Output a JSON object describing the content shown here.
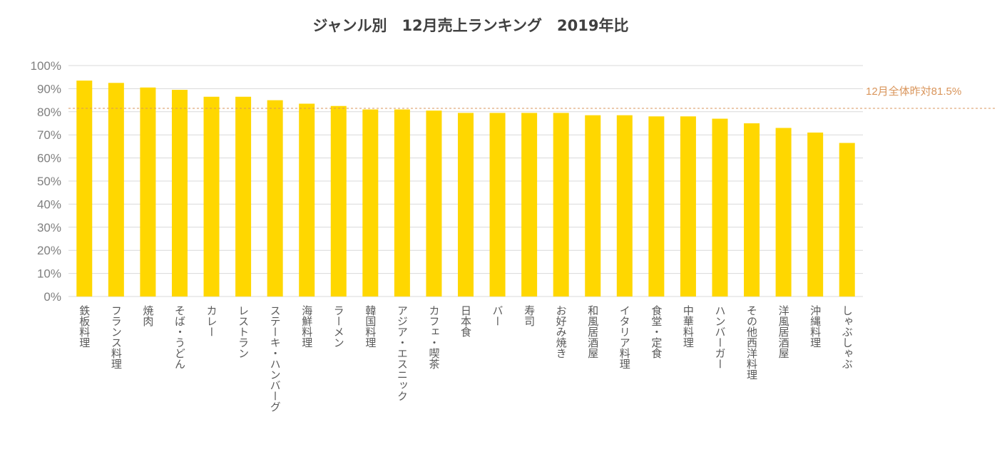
{
  "chart_data": {
    "type": "bar",
    "title": "ジャンル別　12月売上ランキング　2019年比",
    "xlabel": "",
    "ylabel": "",
    "ylim": [
      0,
      100
    ],
    "yticks": [
      "0%",
      "10%",
      "20%",
      "30%",
      "40%",
      "50%",
      "60%",
      "70%",
      "80%",
      "90%",
      "100%"
    ],
    "grid": true,
    "legend": "none",
    "categories": [
      "鉄板料理",
      "フランス料理",
      "焼肉",
      "そば・うどん",
      "カレー",
      "レストラン",
      "ステーキ・ハンバーグ",
      "海鮮料理",
      "ラーメン",
      "韓国料理",
      "アジア・エスニック",
      "カフェ・喫茶",
      "日本食",
      "バー",
      "寿司",
      "お好み焼き",
      "和風居酒屋",
      "イタリア料理",
      "食堂・定食",
      "中華料理",
      "ハンバーガー",
      "その他西洋料理",
      "洋風居酒屋",
      "沖縄料理",
      "しゃぶしゃぶ"
    ],
    "values": [
      93.5,
      92.5,
      90.5,
      89.5,
      86.5,
      86.5,
      85,
      83.5,
      82.5,
      81,
      81,
      80.5,
      79.5,
      79.5,
      79.5,
      79.5,
      78.5,
      78.5,
      78,
      78,
      77,
      75,
      73,
      71,
      66.5
    ],
    "reference_line": {
      "value": 81.5,
      "label": "12月全体昨対81.5%",
      "color": "#d9955b"
    },
    "bar_color": "#ffd700",
    "grid_color": "#d9d9d9"
  }
}
